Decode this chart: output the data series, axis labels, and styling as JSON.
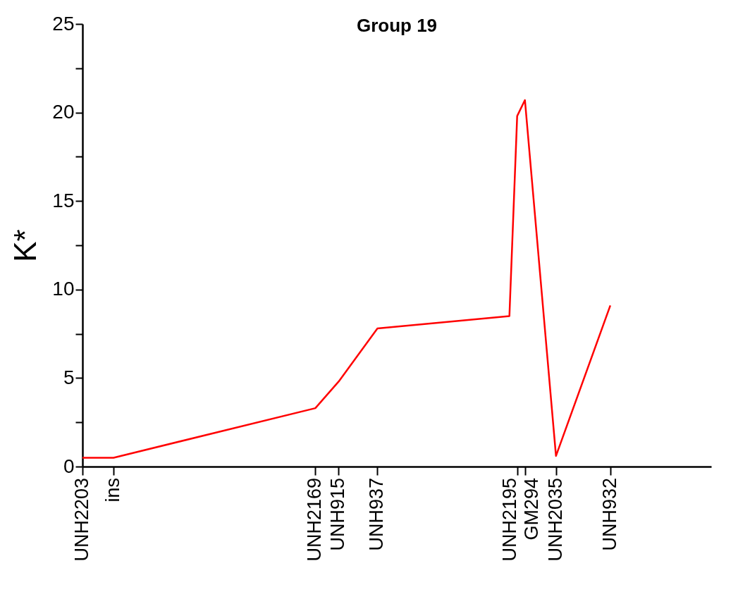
{
  "chart_data": {
    "type": "line",
    "title": "Group 19",
    "ylabel": "K*",
    "categories": [
      "UNH2203",
      null,
      null,
      null,
      "ins",
      null,
      null,
      null,
      null,
      null,
      null,
      null,
      null,
      null,
      null,
      null,
      null,
      null,
      null,
      null,
      null,
      null,
      null,
      null,
      null,
      null,
      null,
      null,
      null,
      null,
      "UNH2169",
      null,
      null,
      "UNH915",
      null,
      null,
      null,
      null,
      "UNH937",
      null,
      null,
      null,
      null,
      null,
      null,
      null,
      null,
      null,
      null,
      null,
      null,
      null,
      null,
      null,
      null,
      null,
      "UNH2195",
      "GM294",
      null,
      null,
      null,
      "UNH2035",
      null,
      null,
      null,
      null,
      null,
      null,
      "UNH932",
      null,
      null,
      null,
      null,
      null,
      null,
      null,
      null,
      null,
      null,
      null,
      null,
      null
    ],
    "series": [
      {
        "color": "#ff0000",
        "values": [
          0.5,
          null,
          null,
          null,
          0.5,
          null,
          null,
          null,
          null,
          null,
          null,
          null,
          null,
          null,
          null,
          null,
          null,
          null,
          null,
          null,
          null,
          null,
          null,
          null,
          null,
          null,
          null,
          null,
          null,
          null,
          3.3,
          null,
          null,
          4.8,
          null,
          null,
          null,
          null,
          7.8,
          null,
          null,
          null,
          null,
          null,
          null,
          null,
          null,
          null,
          null,
          null,
          null,
          null,
          null,
          null,
          null,
          8.5,
          19.8,
          20.7,
          null,
          null,
          null,
          0.6,
          null,
          null,
          null,
          null,
          null,
          null,
          9.1,
          null,
          null,
          null,
          null,
          null,
          null,
          null,
          null,
          null,
          null,
          null,
          null,
          null
        ]
      }
    ],
    "ylim": [
      0,
      25
    ],
    "yticks": [
      0,
      {
        "value": 2.5,
        "label": null
      },
      5,
      {
        "value": 7.5,
        "label": null
      },
      10,
      {
        "value": 12.5,
        "label": null
      },
      15,
      {
        "value": 17.5,
        "label": null
      },
      20,
      {
        "value": 22.5,
        "label": null
      },
      25
    ],
    "grid": false,
    "legend": false,
    "marker": "none",
    "line_style": "solid"
  }
}
